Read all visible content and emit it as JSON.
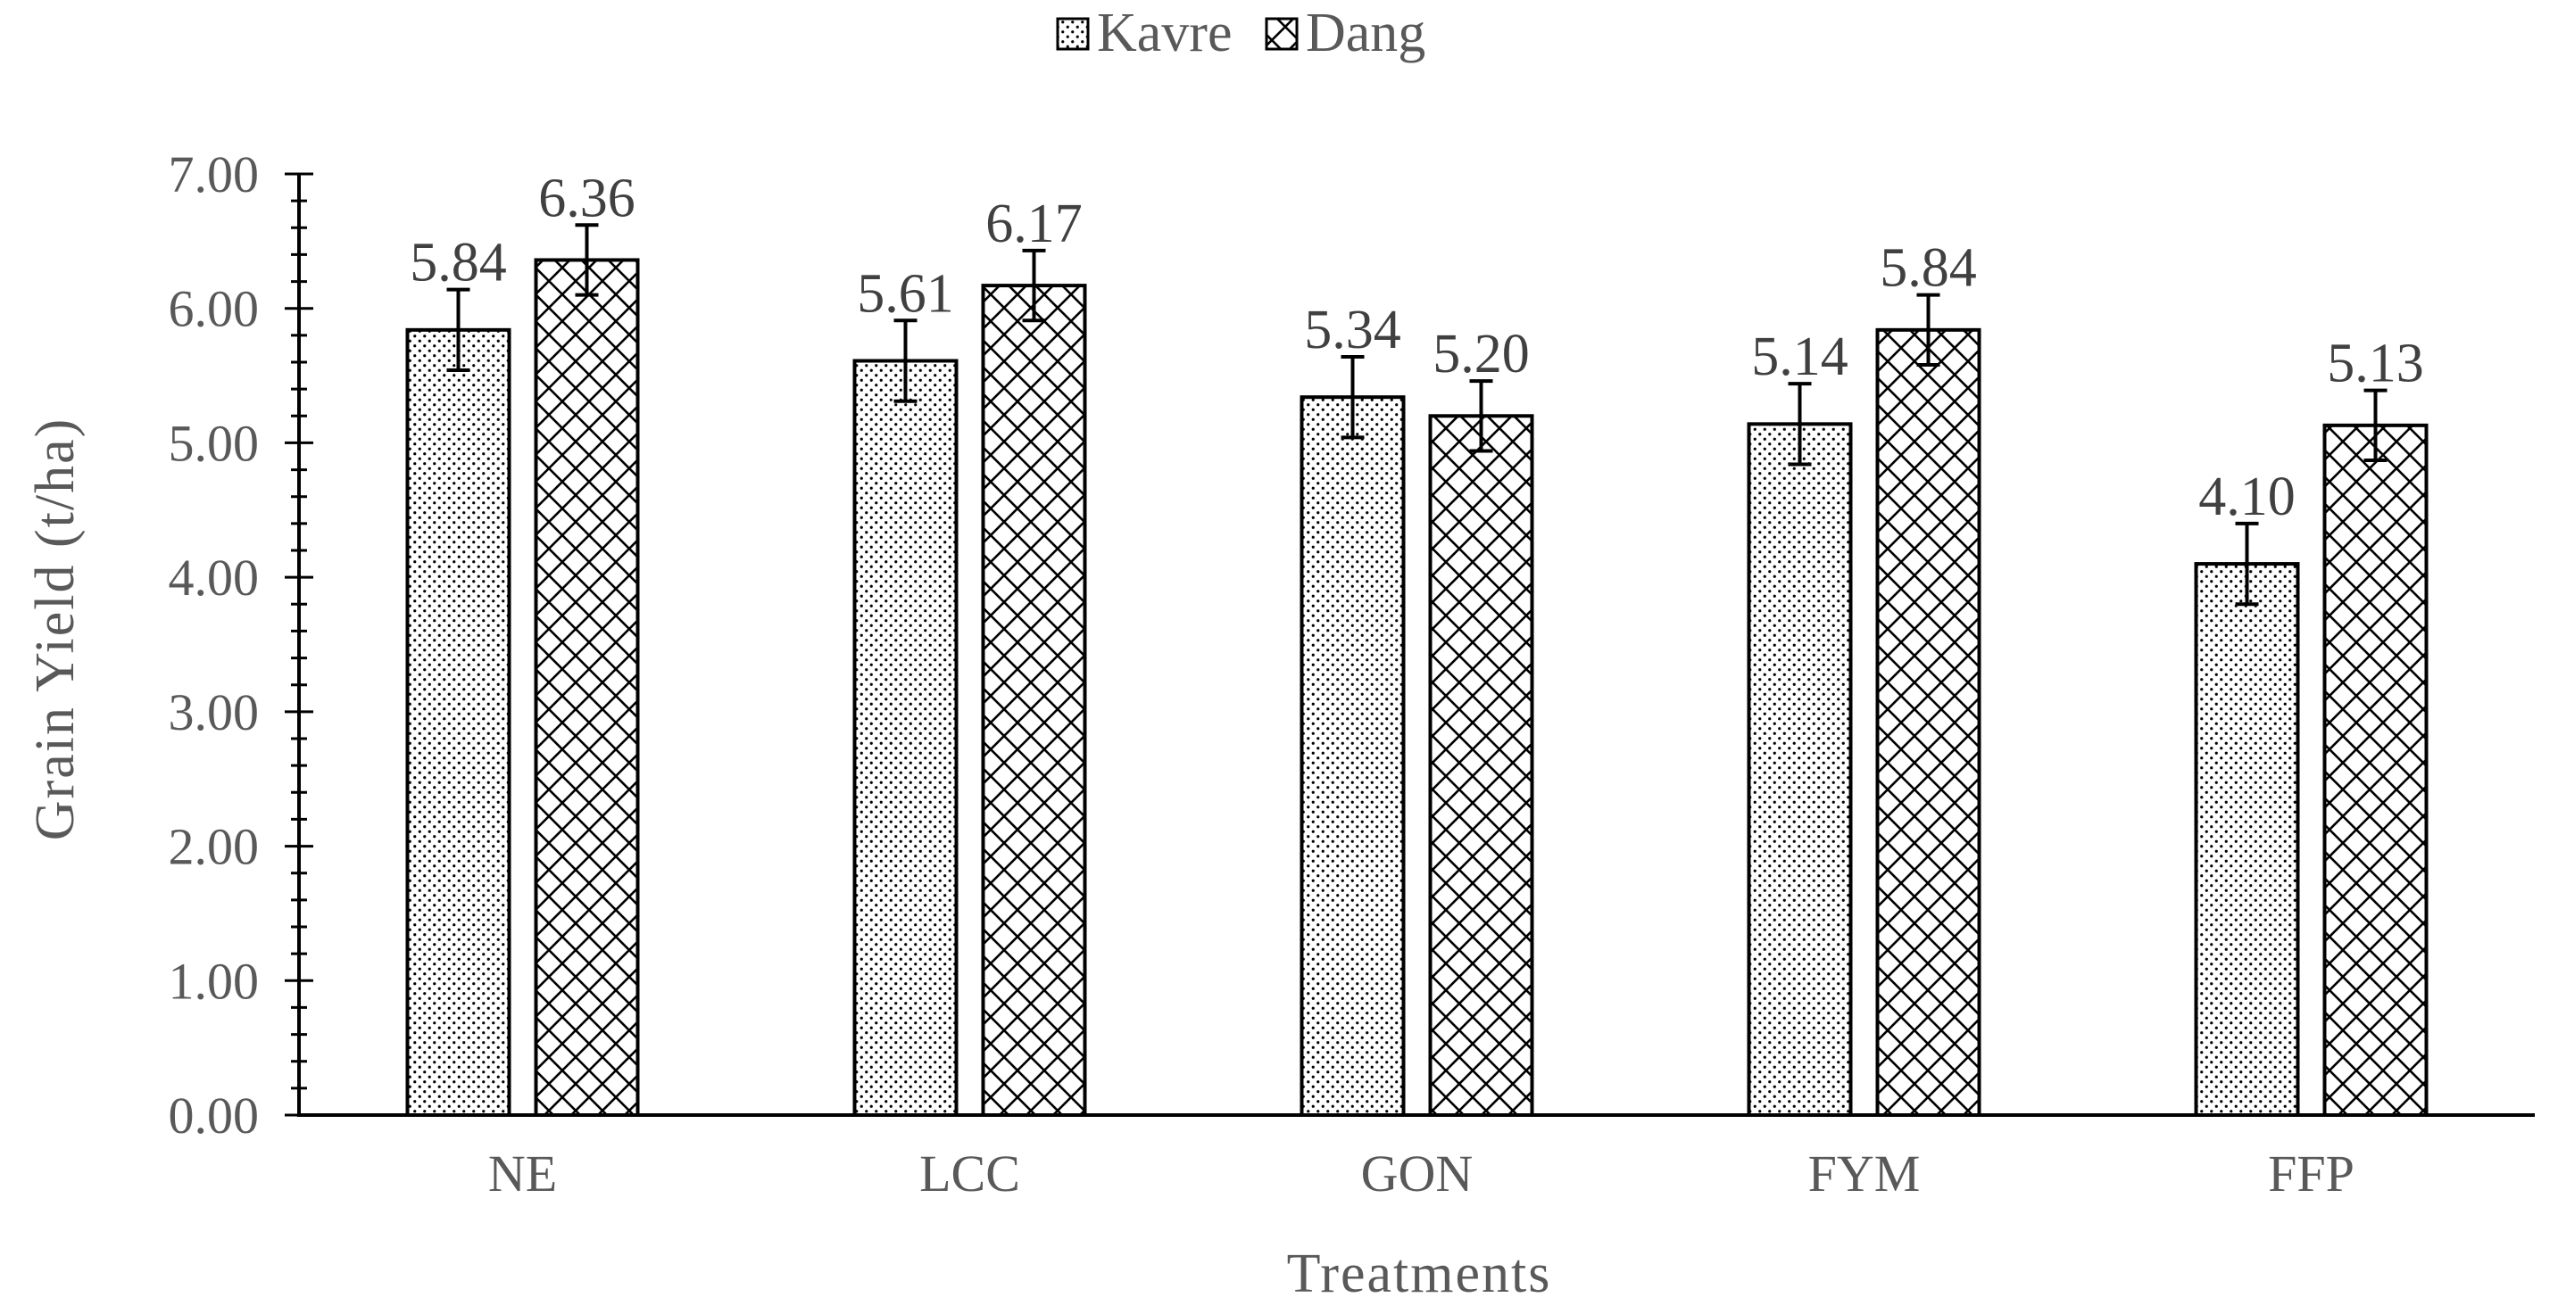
{
  "chart_data": {
    "type": "bar",
    "title": "",
    "xlabel": "Treatments",
    "ylabel": "Grain Yield (t/ha)",
    "categories": [
      "NE",
      "LCC",
      "GON",
      "FYM",
      "FFP"
    ],
    "series": [
      {
        "name": "Kavre",
        "pattern": "dots",
        "values": [
          5.84,
          5.61,
          5.34,
          5.14,
          4.1
        ],
        "labels": [
          "5.84",
          "5.61",
          "5.34",
          "5.14",
          "4.10"
        ],
        "error": [
          0.3,
          0.3,
          0.3,
          0.3,
          0.3
        ]
      },
      {
        "name": "Dang",
        "pattern": "crosshatch",
        "values": [
          6.36,
          6.17,
          5.2,
          5.84,
          5.13
        ],
        "labels": [
          "6.36",
          "6.17",
          "5.20",
          "5.84",
          "5.13"
        ],
        "error": [
          0.26,
          0.26,
          0.26,
          0.26,
          0.26
        ]
      }
    ],
    "ylim": [
      0,
      7
    ],
    "yticks": [
      "0.00",
      "1.00",
      "2.00",
      "3.00",
      "4.00",
      "5.00",
      "6.00",
      "7.00"
    ],
    "minor_ticks_per_major": 5,
    "grid": false,
    "legend": "top-center",
    "colors": {
      "axis": "#000000",
      "text": "#595959",
      "label_text": "#404040",
      "bar_fill": "#ffffff",
      "bar_stroke": "#000000"
    }
  }
}
